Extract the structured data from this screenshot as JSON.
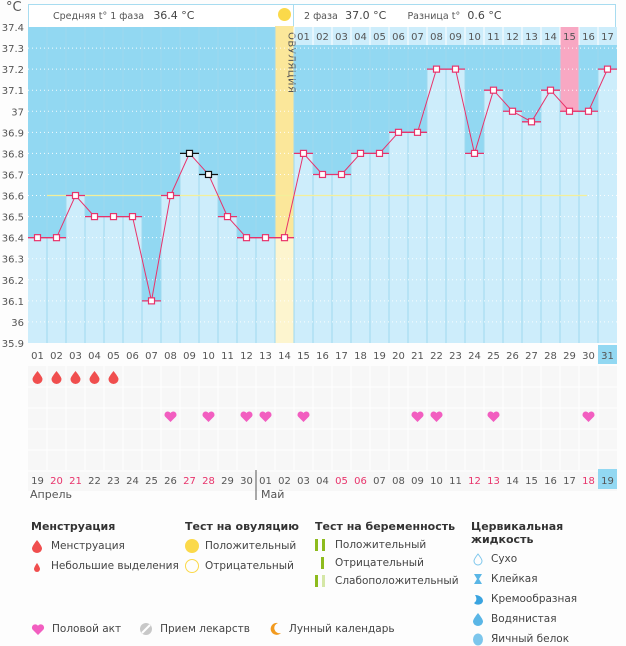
{
  "header": {
    "unit": "°C",
    "phase1_label": "Средняя t° 1 фаза",
    "phase1_value": "36.4 °C",
    "phase2_label": "2 фаза",
    "phase2_value": "37.0 °C",
    "diff_label": "Разница t°",
    "diff_value": "0.6 °C",
    "ovulation_label": "ОВУЛЯЦИЯ"
  },
  "colors": {
    "chart_bg": "#92d8f2",
    "bar_fill": "#cdedfb",
    "line": "#e8336b",
    "ovulation": "#fbe79a",
    "coverline": "#f3ef9a",
    "highlight_day": "#f8a8c3",
    "today": "#92d8f2"
  },
  "chart_data": {
    "type": "line",
    "title": "",
    "xlabel": "День цикла",
    "ylabel": "°C",
    "ylim": [
      35.9,
      37.4
    ],
    "yticks": [
      "37.4",
      "37.3",
      "37.2",
      "37.1",
      "37",
      "36.9",
      "36.8",
      "36.7",
      "36.6",
      "36.5",
      "36.4",
      "36.3",
      "36.2",
      "36.1",
      "36",
      "35.9"
    ],
    "grid": true,
    "coverline": 36.6,
    "cycle_days": [
      "01",
      "02",
      "03",
      "04",
      "05",
      "06",
      "07",
      "08",
      "09",
      "10",
      "11",
      "12",
      "13",
      "14",
      "15",
      "16",
      "17",
      "18",
      "19",
      "20",
      "21",
      "22",
      "23",
      "24",
      "25",
      "26",
      "27",
      "28",
      "29",
      "30",
      "31"
    ],
    "temperatures": [
      36.4,
      36.4,
      36.6,
      36.5,
      36.5,
      36.5,
      36.1,
      36.6,
      36.8,
      36.7,
      36.5,
      36.4,
      36.4,
      36.4,
      36.8,
      36.7,
      36.7,
      36.8,
      36.8,
      36.9,
      36.9,
      37.2,
      37.2,
      36.8,
      37.1,
      37.0,
      36.95,
      37.1,
      37.0,
      37.0,
      37.2
    ],
    "excluded_points_days": [
      "09",
      "10"
    ],
    "ovulation_day": "14",
    "phase2_days": [
      "01",
      "02",
      "03",
      "04",
      "05",
      "06",
      "07",
      "08",
      "09",
      "10",
      "11",
      "12",
      "13",
      "14",
      "15",
      "16",
      "17"
    ],
    "highlighted_phase2_day": "15",
    "today_cycle_day": "31",
    "calendar_dates": [
      "19",
      "20",
      "21",
      "22",
      "23",
      "24",
      "25",
      "26",
      "27",
      "28",
      "29",
      "30",
      "01",
      "02",
      "03",
      "04",
      "05",
      "06",
      "07",
      "08",
      "09",
      "10",
      "11",
      "12",
      "13",
      "14",
      "15",
      "16",
      "17",
      "18",
      "19"
    ],
    "weekend_dates_idx": [
      1,
      2,
      8,
      9,
      16,
      17,
      23,
      24,
      29
    ],
    "months": [
      "Апрель",
      "Май"
    ],
    "menstruation_days": [
      "01",
      "02",
      "03",
      "04",
      "05"
    ],
    "intercourse_days": [
      "08",
      "10",
      "12",
      "13",
      "15",
      "21",
      "22",
      "25",
      "30"
    ]
  },
  "legend": {
    "menstruation": {
      "title": "Менструация",
      "items": [
        "Менструация",
        "Небольшие выделения"
      ]
    },
    "ovulation_test": {
      "title": "Тест на овуляцию",
      "items": [
        "Положительный",
        "Отрицательный"
      ]
    },
    "pregnancy_test": {
      "title": "Тест на беременность",
      "items": [
        "Положительный",
        "Отрицательный",
        "Слабоположительный"
      ]
    },
    "cervical": {
      "title": "Цервикальная жидкость",
      "items": [
        "Сухо",
        "Клейкая",
        "Кремообразная",
        "Водянистая",
        "Яичный белок"
      ]
    },
    "other": [
      "Половой акт",
      "Прием лекарств",
      "Лунный календарь"
    ]
  }
}
